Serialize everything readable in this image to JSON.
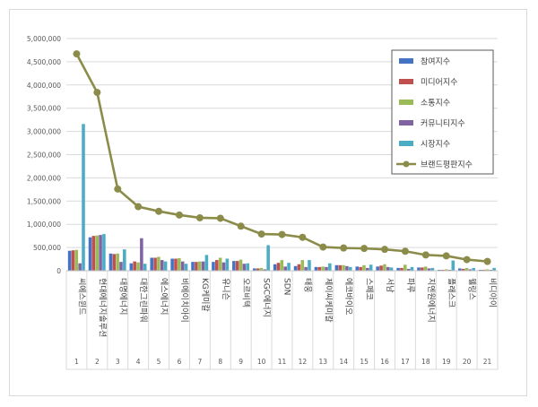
{
  "chart_data": {
    "type": "bar",
    "title": "",
    "xlabel": "",
    "ylabel": "",
    "ylim": [
      0,
      5000000
    ],
    "yticks": [
      "0",
      "500,000",
      "1,000,000",
      "1,500,000",
      "2,000,000",
      "2,500,000",
      "3,000,000",
      "3,500,000",
      "4,000,000",
      "4,500,000",
      "5,000,000"
    ],
    "grid": "horizontal",
    "legend_position": "top-right",
    "ranks": [
      "1",
      "2",
      "3",
      "4",
      "5",
      "6",
      "7",
      "8",
      "9",
      "10",
      "11",
      "12",
      "13",
      "14",
      "15",
      "16",
      "17",
      "18",
      "19",
      "20",
      "21"
    ],
    "categories": [
      "씨에스윈드",
      "현대에너지솔루션",
      "대명에너지",
      "대한그린파워",
      "에스에너지",
      "비에이치아이",
      "KG케미칼",
      "유니슨",
      "오르비텍",
      "SGC에너지",
      "SDN",
      "태웅",
      "제이씨케미칼",
      "에코바이오",
      "스페코",
      "서남",
      "파루",
      "지엔원에너지",
      "플래스크",
      "웰링스",
      "비디아이"
    ],
    "series": [
      {
        "name": "참여지수",
        "kind": "bar",
        "color": "#4472c4",
        "values": [
          430000,
          720000,
          370000,
          160000,
          280000,
          260000,
          190000,
          190000,
          210000,
          50000,
          140000,
          100000,
          80000,
          120000,
          90000,
          90000,
          60000,
          70000,
          20000,
          50000,
          20000
        ]
      },
      {
        "name": "미디어지수",
        "kind": "bar",
        "color": "#c0504d",
        "values": [
          440000,
          750000,
          360000,
          200000,
          280000,
          260000,
          190000,
          230000,
          210000,
          50000,
          170000,
          140000,
          80000,
          120000,
          80000,
          110000,
          60000,
          70000,
          20000,
          40000,
          20000
        ]
      },
      {
        "name": "소통지수",
        "kind": "bar",
        "color": "#9bbb59",
        "values": [
          450000,
          760000,
          370000,
          180000,
          300000,
          270000,
          200000,
          280000,
          240000,
          60000,
          230000,
          230000,
          90000,
          120000,
          120000,
          140000,
          130000,
          90000,
          30000,
          60000,
          30000
        ]
      },
      {
        "name": "커뮤니티지수",
        "kind": "bar",
        "color": "#8064a2",
        "values": [
          160000,
          770000,
          190000,
          700000,
          230000,
          200000,
          200000,
          180000,
          150000,
          30000,
          90000,
          80000,
          80000,
          100000,
          60000,
          80000,
          40000,
          50000,
          20000,
          30000,
          20000
        ]
      },
      {
        "name": "시장지수",
        "kind": "bar",
        "color": "#4bacc6",
        "values": [
          3160000,
          790000,
          460000,
          150000,
          200000,
          150000,
          340000,
          260000,
          160000,
          550000,
          170000,
          230000,
          160000,
          80000,
          130000,
          70000,
          80000,
          60000,
          220000,
          60000,
          60000
        ]
      },
      {
        "name": "브랜드평판지수",
        "kind": "line",
        "color": "#8c8c4a",
        "values": [
          4670000,
          3840000,
          1760000,
          1380000,
          1280000,
          1200000,
          1140000,
          1130000,
          960000,
          790000,
          780000,
          720000,
          510000,
          490000,
          480000,
          460000,
          420000,
          340000,
          320000,
          240000,
          200000
        ]
      }
    ]
  }
}
